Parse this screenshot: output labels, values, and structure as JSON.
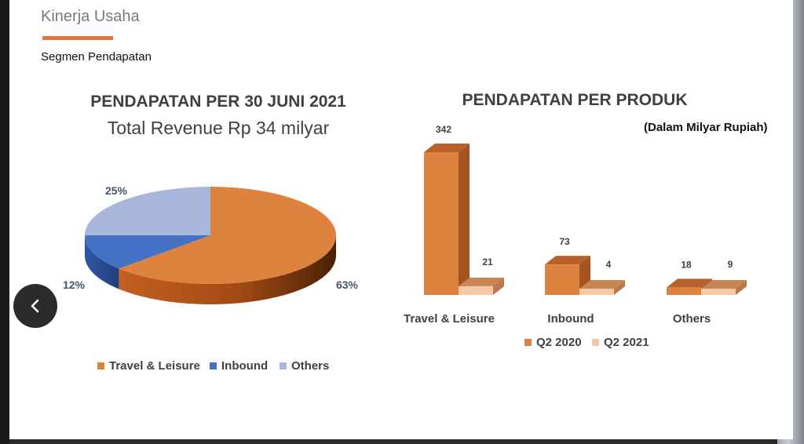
{
  "slide": {
    "title": "Kinerja Usaha",
    "subtitle": "Segmen Pendapatan"
  },
  "colors": {
    "accent": "#e8743b",
    "travel": "#de8240",
    "inbound": "#4472c4",
    "others": "#a9b6dc",
    "q2_2020": "#de8240",
    "q2_2021": "#f6c8a3"
  },
  "pie_chart": {
    "title": "PENDAPATAN PER 30 JUNI 2021",
    "subtitle": "Total Revenue Rp 34 milyar",
    "legend": [
      "Travel & Leisure",
      "Inbound",
      "Others"
    ]
  },
  "bar_chart": {
    "title": "PENDAPATAN PER PRODUK",
    "units": "(Dalam Milyar Rupiah)",
    "legend": [
      "Q2 2020",
      "Q2 2021"
    ]
  },
  "chart_data": [
    {
      "type": "pie",
      "title": "PENDAPATAN PER 30 JUNI 2021",
      "subtitle": "Total Revenue Rp 34 milyar",
      "categories": [
        "Travel & Leisure",
        "Inbound",
        "Others"
      ],
      "values": [
        63,
        12,
        25
      ],
      "labels": [
        "63%",
        "12%",
        "25%"
      ],
      "legend_position": "bottom"
    },
    {
      "type": "bar",
      "title": "PENDAPATAN PER PRODUK",
      "subtitle": "(Dalam Milyar Rupiah)",
      "categories": [
        "Travel & Leisure",
        "Inbound",
        "Others"
      ],
      "series": [
        {
          "name": "Q2 2020",
          "values": [
            342,
            73,
            18
          ]
        },
        {
          "name": "Q2 2021",
          "values": [
            21,
            4,
            9
          ]
        }
      ],
      "legend_position": "bottom"
    }
  ],
  "nav": {
    "back_icon": "chevron-left-icon"
  }
}
